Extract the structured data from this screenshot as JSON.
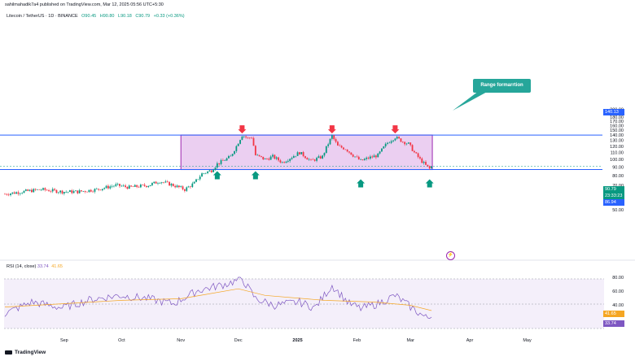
{
  "header": {
    "published": "sahilmahadik7a4 published on TradingView.com, Mar 12, 2025 05:56 UTC+5:30",
    "symbol": "Litecoin / TetherUS · 1D · BINANCE",
    "ohlc": {
      "open": "O90.45",
      "high": "H90.80",
      "low": "L90.18",
      "close": "C90.79",
      "change": "+0.33 (+0.36%)"
    }
  },
  "annotation": {
    "label": "Range formarrtion",
    "color": "#26a69a"
  },
  "price_tags": {
    "last": "90.79",
    "countdown": "23:33:23",
    "support": "86.94",
    "resistance": "140.13"
  },
  "rsi": {
    "label": "RSI (14, close)",
    "rsi_value": "33.74",
    "ma_value": "41.65",
    "ticks": [
      "80.00",
      "60.00",
      "40.00"
    ]
  },
  "footer": {
    "brand": "TradingView"
  },
  "colors": {
    "up": "#089981",
    "down": "#f23645",
    "range_fill": "#e7c7ee",
    "range_border": "#9c27b0",
    "level_line": "#2962ff",
    "rsi_line": "#7e57c2",
    "rsi_ma": "#f5a623"
  },
  "chart_data": {
    "type": "candlestick",
    "y_ticks": [
      50,
      60,
      70,
      80,
      90,
      100,
      110,
      120,
      130,
      140,
      150,
      160,
      170,
      180,
      190,
      200
    ],
    "y_tick_labels": [
      "50.00",
      "60.00",
      "70.00",
      "80.00",
      "90.00",
      "100.00",
      "110.00",
      "120.00",
      "130.00",
      "140.00",
      "150.00",
      "160.00",
      "170.00",
      "180.00",
      "190.00",
      "200.00"
    ],
    "x_ticks": [
      "Sep",
      "Oct",
      "Nov",
      "Dec",
      "2025",
      "Feb",
      "Mar",
      "Apr",
      "May"
    ],
    "levels": {
      "resistance": 140.13,
      "support": 86.94,
      "last": 90.79
    },
    "range_box": {
      "from": "Nov 01",
      "to": "Mar 12",
      "low": 86.94,
      "high": 140.13
    },
    "bottom_markers": [
      "Nov 20",
      "Dec 10",
      "Feb 03",
      "Mar 11"
    ],
    "top_markers": [
      "Dec 03",
      "Jan 19",
      "Feb 21"
    ],
    "close_path": [
      [
        "Aug 01",
        62
      ],
      [
        "Aug 10",
        64
      ],
      [
        "Aug 20",
        66
      ],
      [
        "Aug 31",
        64
      ],
      [
        "Sep 08",
        64
      ],
      [
        "Sep 18",
        66
      ],
      [
        "Sep 28",
        70
      ],
      [
        "Oct 05",
        68
      ],
      [
        "Oct 15",
        70
      ],
      [
        "Oct 21",
        74
      ],
      [
        "Oct 28",
        70
      ],
      [
        "Nov 03",
        66
      ],
      [
        "Nov 08",
        72
      ],
      [
        "Nov 12",
        82
      ],
      [
        "Nov 17",
        86
      ],
      [
        "Nov 20",
        94
      ],
      [
        "Nov 23",
        98
      ],
      [
        "Nov 27",
        104
      ],
      [
        "Nov 30",
        120
      ],
      [
        "Dec 03",
        140
      ],
      [
        "Dec 06",
        134
      ],
      [
        "Dec 08",
        136
      ],
      [
        "Dec 10",
        106
      ],
      [
        "Dec 15",
        100
      ],
      [
        "Dec 19",
        104
      ],
      [
        "Dec 24",
        96
      ],
      [
        "Dec 28",
        102
      ],
      [
        "Jan 02",
        110
      ],
      [
        "Jan 08",
        98
      ],
      [
        "Jan 14",
        104
      ],
      [
        "Jan 19",
        138
      ],
      [
        "Jan 22",
        120
      ],
      [
        "Jan 26",
        116
      ],
      [
        "Jan 30",
        106
      ],
      [
        "Feb 03",
        98
      ],
      [
        "Feb 07",
        102
      ],
      [
        "Feb 12",
        106
      ],
      [
        "Feb 17",
        126
      ],
      [
        "Feb 21",
        136
      ],
      [
        "Feb 25",
        128
      ],
      [
        "Feb 28",
        124
      ],
      [
        "Mar 03",
        110
      ],
      [
        "Mar 06",
        100
      ],
      [
        "Mar 09",
        92
      ],
      [
        "Mar 11",
        88
      ],
      [
        "Mar 12",
        90.79
      ]
    ],
    "rsi_path": [
      [
        "Aug 01",
        38
      ],
      [
        "Aug 15",
        52
      ],
      [
        "Aug 31",
        45
      ],
      [
        "Sep 15",
        55
      ],
      [
        "Sep 30",
        60
      ],
      [
        "Oct 15",
        56
      ],
      [
        "Oct 28",
        50
      ],
      [
        "Nov 10",
        66
      ],
      [
        "Nov 25",
        74
      ],
      [
        "Dec 03",
        80
      ],
      [
        "Dec 10",
        56
      ],
      [
        "Dec 20",
        48
      ],
      [
        "Jan 02",
        52
      ],
      [
        "Jan 10",
        45
      ],
      [
        "Jan 19",
        72
      ],
      [
        "Jan 28",
        50
      ],
      [
        "Feb 03",
        44
      ],
      [
        "Feb 12",
        50
      ],
      [
        "Feb 21",
        60
      ],
      [
        "Mar 01",
        46
      ],
      [
        "Mar 09",
        33
      ],
      [
        "Mar 12",
        33.74
      ]
    ],
    "rsi_ma_path": [
      [
        "Aug 01",
        46
      ],
      [
        "Sep 01",
        50
      ],
      [
        "Oct 01",
        54
      ],
      [
        "Nov 01",
        56
      ],
      [
        "Dec 01",
        68
      ],
      [
        "Dec 15",
        60
      ],
      [
        "Jan 15",
        54
      ],
      [
        "Feb 10",
        52
      ],
      [
        "Mar 01",
        48
      ],
      [
        "Mar 12",
        41.65
      ]
    ]
  }
}
